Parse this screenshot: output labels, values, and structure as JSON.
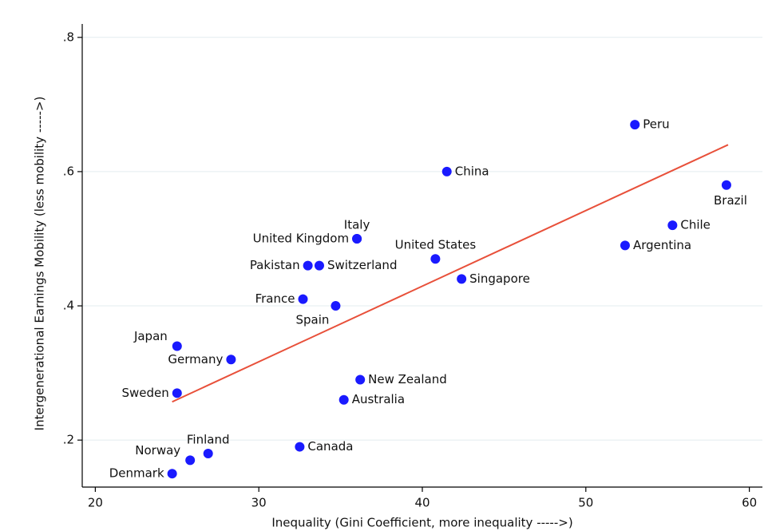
{
  "chart_data": {
    "type": "scatter",
    "x_label": "Inequality (Gini Coefficient, more inequality ----->)",
    "y_label": "Intergenerational Earnings Mobility (less mobility ----->)",
    "xlim": [
      19.2,
      60.8
    ],
    "ylim": [
      0.13,
      0.82
    ],
    "xticks": [
      20,
      30,
      40,
      50,
      60
    ],
    "yticks": [
      {
        "value": 0.2,
        "label": ".2"
      },
      {
        "value": 0.4,
        "label": ".4"
      },
      {
        "value": 0.6,
        "label": ".6"
      },
      {
        "value": 0.8,
        "label": ".8"
      }
    ],
    "grid": true,
    "color": "#1a1aff",
    "labels": [
      "Peru",
      "China",
      "Brazil",
      "Chile",
      "Argentina",
      "Italy",
      "United Kingdom",
      "United States",
      "Pakistan",
      "Switzerland",
      "Singapore",
      "France",
      "Spain",
      "Japan",
      "Germany",
      "New Zealand",
      "Sweden",
      "Australia",
      "Canada",
      "Finland",
      "Norway",
      "Denmark"
    ],
    "x": [
      53.0,
      41.5,
      58.6,
      55.3,
      52.4,
      36.0,
      36.0,
      40.8,
      33.0,
      33.7,
      42.4,
      32.7,
      34.7,
      25.0,
      28.3,
      36.2,
      25.0,
      35.2,
      32.5,
      26.9,
      25.8,
      24.7
    ],
    "y": [
      0.67,
      0.6,
      0.58,
      0.52,
      0.49,
      0.5,
      0.5,
      0.47,
      0.46,
      0.46,
      0.44,
      0.41,
      0.4,
      0.34,
      0.32,
      0.29,
      0.27,
      0.26,
      0.19,
      0.18,
      0.17,
      0.15
    ],
    "fit_line": {
      "x": [
        24.7,
        58.7
      ],
      "y": [
        0.257,
        0.64
      ],
      "color": "#e8503a"
    }
  }
}
